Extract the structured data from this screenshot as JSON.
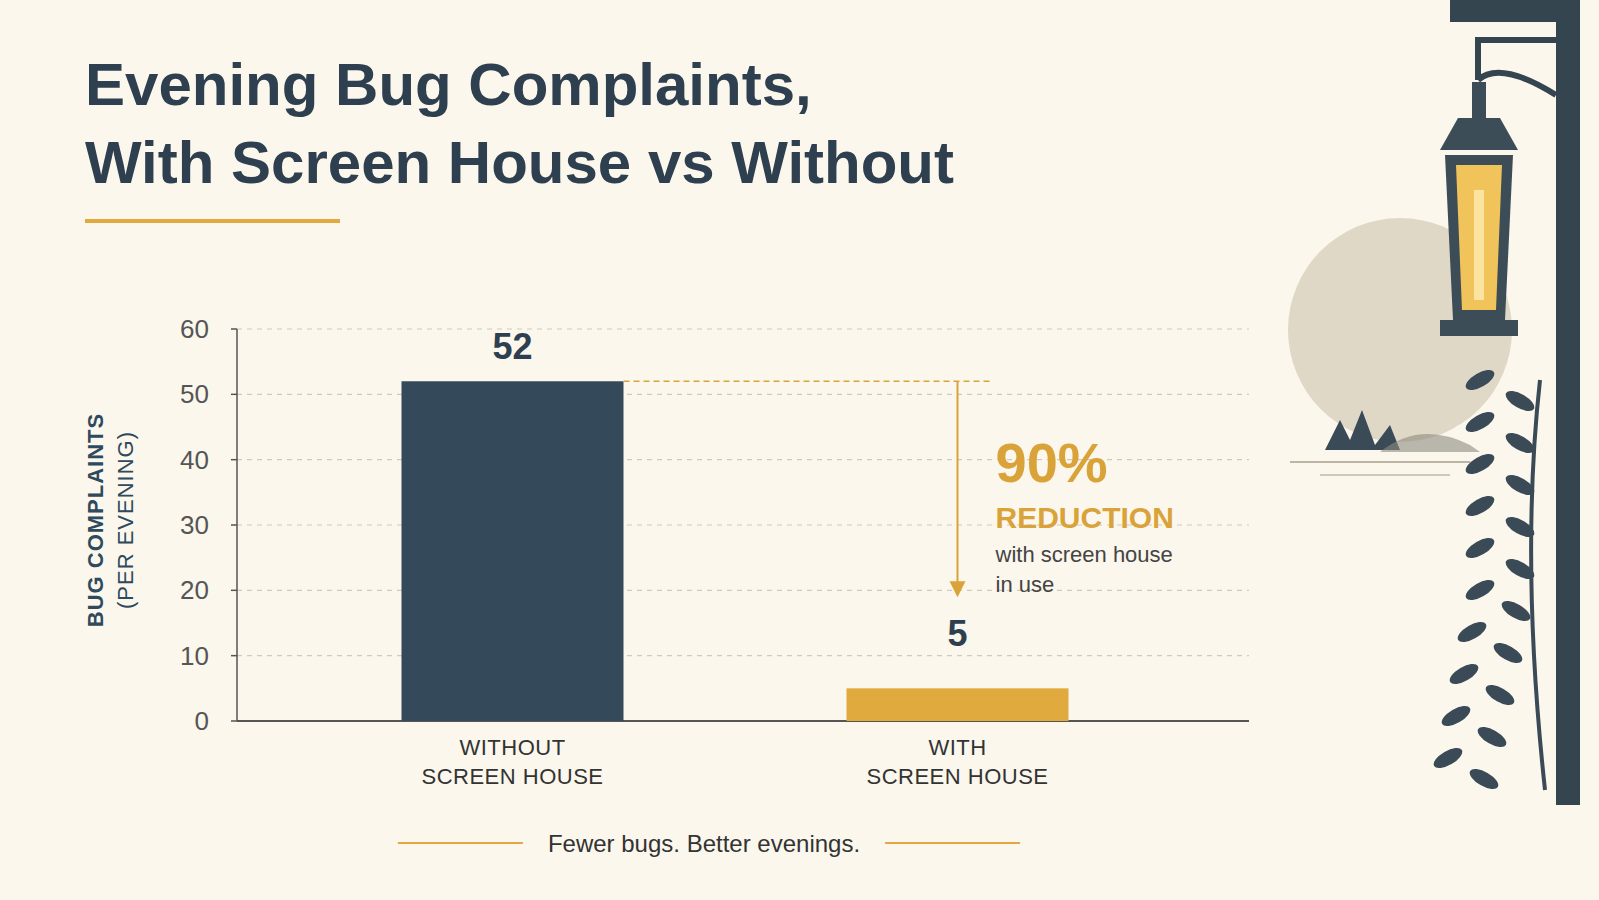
{
  "chart_data": {
    "type": "bar",
    "title": "Evening Bug Complaints, With Screen House vs Without",
    "y_label": "BUG COMPLAINTS (PER EVENING)",
    "categories": [
      "WITHOUT SCREEN HOUSE",
      "WITH SCREEN HOUSE"
    ],
    "values": [
      52,
      5
    ],
    "colors": [
      "#34495a",
      "#e0aa3e"
    ],
    "ylim": [
      0,
      60
    ],
    "yticks": [
      0,
      10,
      20,
      30,
      40,
      50,
      60
    ],
    "grid": true,
    "data_labels": true,
    "annotations": [
      "90%",
      "REDUCTION",
      "with screen house in use"
    ],
    "caption": "Fewer bugs. Better evenings."
  }
}
